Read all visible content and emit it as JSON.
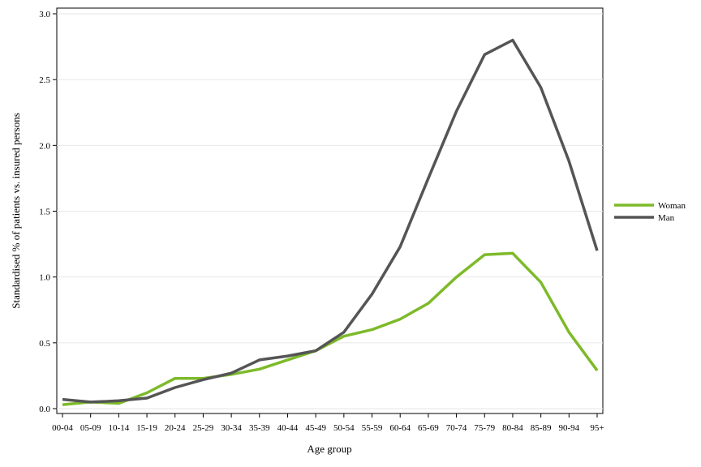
{
  "chart_data": {
    "type": "line",
    "title": "",
    "xlabel": "Age group",
    "ylabel": "Standardised % of patients vs. insured persons",
    "categories": [
      "00-04",
      "05-09",
      "10-14",
      "15-19",
      "20-24",
      "25-29",
      "30-34",
      "35-39",
      "40-44",
      "45-49",
      "50-54",
      "55-59",
      "60-64",
      "65-69",
      "70-74",
      "75-79",
      "80-84",
      "85-89",
      "90-94",
      "95+"
    ],
    "ylim": [
      0,
      3.0
    ],
    "yticks": [
      "0.0",
      "0.5",
      "1.0",
      "1.5",
      "2.0",
      "2.5",
      "3.0"
    ],
    "grid": true,
    "legend_position": "right",
    "series": [
      {
        "name": "Woman",
        "color": "#7dba2a",
        "values": [
          0.03,
          0.05,
          0.04,
          0.12,
          0.23,
          0.23,
          0.26,
          0.3,
          0.37,
          0.44,
          0.55,
          0.6,
          0.68,
          0.8,
          1.0,
          1.17,
          1.18,
          0.96,
          0.58,
          0.29
        ]
      },
      {
        "name": "Man",
        "color": "#555555",
        "values": [
          0.07,
          0.05,
          0.06,
          0.08,
          0.16,
          0.22,
          0.27,
          0.37,
          0.4,
          0.44,
          0.58,
          0.87,
          1.23,
          1.75,
          2.26,
          2.69,
          2.8,
          2.44,
          1.88,
          1.2
        ]
      }
    ]
  }
}
